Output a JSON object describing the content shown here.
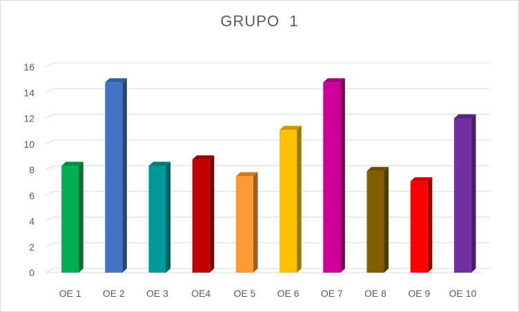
{
  "chart_data": {
    "type": "bar",
    "title": "GRUPO  1",
    "xlabel": "",
    "ylabel": "",
    "categories": [
      "OE 1",
      "OE 2",
      "OE 3",
      "OE4",
      "OE 5",
      "OE 6",
      "OE 7",
      "OE 8",
      "OE 9",
      "OE 10"
    ],
    "values": [
      8.3,
      14.8,
      8.3,
      8.8,
      7.5,
      11.1,
      14.8,
      7.9,
      7.1,
      12.0
    ],
    "colors": [
      "#00b050",
      "#4472c4",
      "#009999",
      "#c00000",
      "#ff9933",
      "#ffc000",
      "#cc0099",
      "#7f6000",
      "#ff0000",
      "#7030a0"
    ],
    "yticks": [
      0,
      2,
      4,
      6,
      8,
      10,
      12,
      14,
      16
    ],
    "ylim": [
      0,
      16
    ],
    "grid": true,
    "legend": "none",
    "style": "3d-column"
  }
}
